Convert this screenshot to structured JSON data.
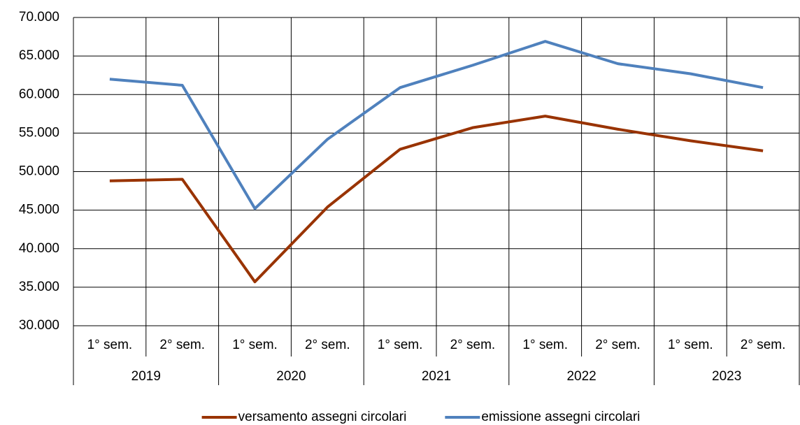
{
  "chart_data": {
    "type": "line",
    "categories": [
      "1° sem.",
      "2° sem.",
      "1° sem.",
      "2° sem.",
      "1° sem.",
      "2° sem.",
      "1° sem.",
      "2° sem.",
      "1° sem.",
      "2° sem."
    ],
    "category_groups": [
      "2019",
      "2020",
      "2021",
      "2022",
      "2023"
    ],
    "series": [
      {
        "name": "versamento assegni circolari",
        "color": "#993300",
        "values": [
          48800,
          49000,
          35700,
          45400,
          52900,
          55700,
          57200,
          55500,
          54000,
          52700
        ]
      },
      {
        "name": "emissione assegni circolari",
        "color": "#4f81bd",
        "values": [
          62000,
          61200,
          45200,
          54200,
          60900,
          63800,
          66900,
          64000,
          62700,
          60900
        ]
      }
    ],
    "ylim": [
      30000,
      70000
    ],
    "yticks": [
      {
        "value": 30000,
        "label": "30.000"
      },
      {
        "value": 35000,
        "label": "35.000"
      },
      {
        "value": 40000,
        "label": "40.000"
      },
      {
        "value": 45000,
        "label": "45.000"
      },
      {
        "value": 50000,
        "label": "50.000"
      },
      {
        "value": 55000,
        "label": "55.000"
      },
      {
        "value": 60000,
        "label": "60.000"
      },
      {
        "value": 65000,
        "label": "65.000"
      },
      {
        "value": 70000,
        "label": "70.000"
      }
    ],
    "grid": true,
    "legend": "bottom"
  }
}
